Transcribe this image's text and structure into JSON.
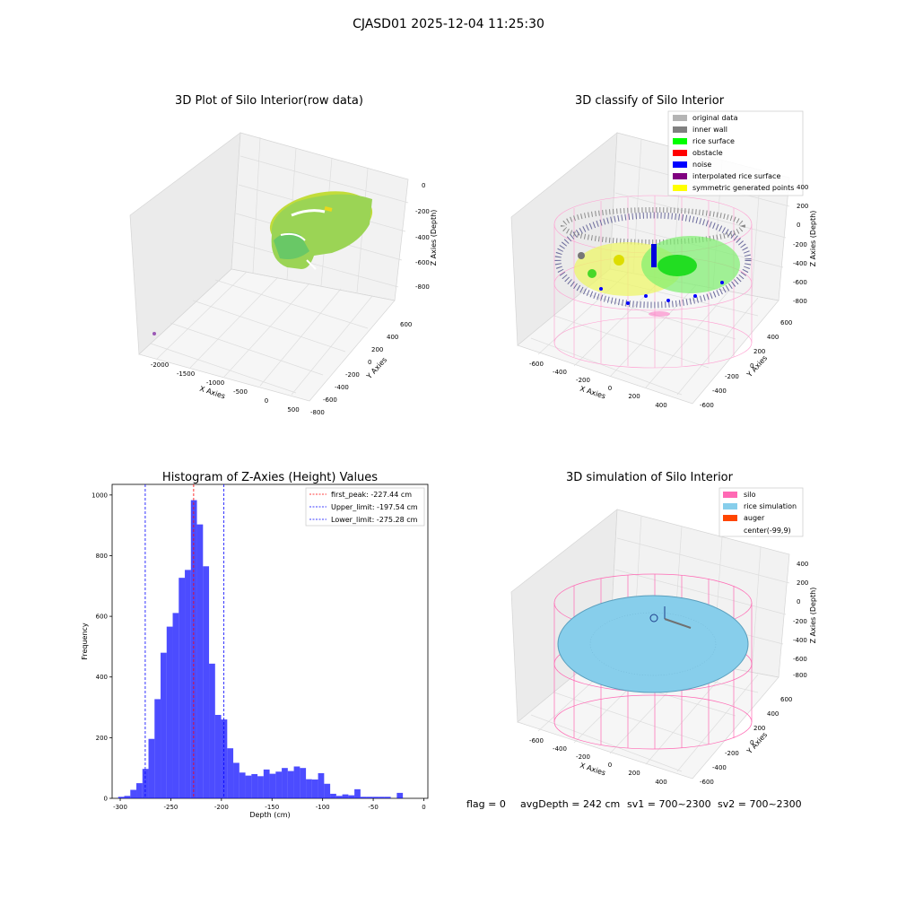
{
  "figure": {
    "suptitle": "CJASD01 2025-12-04 11:25:30",
    "status": {
      "flag": "flag = 0",
      "avg": "avgDepth = 242 cm",
      "sv1": "sv1 = 700~2300",
      "sv2": "sv2 = 700~2300"
    }
  },
  "panels": {
    "raw": {
      "title": "3D Plot of Silo Interior(row data)",
      "xlabel": "X Axies",
      "ylabel": "Y Axies",
      "zlabel": "Z Axies (Depth)",
      "xticks": [
        "-2000",
        "-1500",
        "-1000",
        "-500",
        "0",
        "500"
      ],
      "yticks": [
        "600",
        "400",
        "200",
        "0",
        "-200",
        "-400",
        "-600",
        "-800"
      ],
      "zticks": [
        "0",
        "-200",
        "-400",
        "-600",
        "-800"
      ]
    },
    "classify": {
      "title": "3D classify of Silo Interior",
      "xlabel": "X Axies",
      "ylabel": "Y Axies",
      "zlabel": "Z Axies (Depth)",
      "xticks": [
        "-600",
        "-400",
        "-200",
        "0",
        "200",
        "400"
      ],
      "yticks": [
        "600",
        "400",
        "200",
        "0",
        "-200",
        "-400",
        "-600"
      ],
      "zticks": [
        "400",
        "200",
        "0",
        "-200",
        "-400",
        "-600",
        "-800"
      ],
      "legend": [
        {
          "label": "original data",
          "color": "#b4b4b4"
        },
        {
          "label": "inner wall",
          "color": "#808080"
        },
        {
          "label": "rice surface",
          "color": "#00ff00"
        },
        {
          "label": "obstacle",
          "color": "#ff0000"
        },
        {
          "label": "noise",
          "color": "#0000ff"
        },
        {
          "label": "interpolated rice surface",
          "color": "#800080"
        },
        {
          "label": "symmetric generated points",
          "color": "#ffff00"
        }
      ]
    },
    "simulation": {
      "title": "3D simulation of Silo Interior",
      "xlabel": "X Axies",
      "ylabel": "Y Axies",
      "zlabel": "Z Axies (Depth)",
      "xticks": [
        "-600",
        "-400",
        "-200",
        "0",
        "200",
        "400"
      ],
      "yticks": [
        "600",
        "400",
        "200",
        "0",
        "-200",
        "-400",
        "-600"
      ],
      "zticks": [
        "400",
        "200",
        "0",
        "-200",
        "-400",
        "-600",
        "-800"
      ],
      "legend": [
        {
          "label": "silo",
          "color": "#ff69b4"
        },
        {
          "label": "rice simulation",
          "color": "#87ceeb"
        },
        {
          "label": "auger",
          "color": "#ff4500"
        },
        {
          "label": "center(-99,9)",
          "color": "none"
        }
      ]
    }
  },
  "chart_data": {
    "type": "bar",
    "title": "Histogram of Z-Axies (Height) Values",
    "xlabel": "Depth (cm)",
    "ylabel": "Frequency",
    "xlim": [
      -308,
      4
    ],
    "ylim": [
      0,
      1035
    ],
    "xticks": [
      -300,
      -250,
      -200,
      -150,
      -100,
      -50,
      0
    ],
    "yticks": [
      0,
      200,
      400,
      600,
      800,
      1000
    ],
    "bar_color": "#0000ff",
    "bin_start": -302,
    "bin_width": 5.985,
    "counts": [
      5,
      8,
      28,
      50,
      97,
      196,
      327,
      480,
      566,
      611,
      727,
      753,
      983,
      903,
      765,
      444,
      275,
      260,
      165,
      117,
      85,
      75,
      80,
      73,
      95,
      81,
      88,
      100,
      90,
      105,
      100,
      63,
      62,
      83,
      48,
      15,
      8,
      13,
      10,
      30,
      5,
      5,
      5,
      5,
      5,
      0,
      18
    ],
    "lines": [
      {
        "label": "first_peak: -227.44 cm",
        "x": -227.44,
        "color": "#ff0000"
      },
      {
        "label": "Upper_limit: -197.54 cm",
        "x": -197.54,
        "color": "#0000ff"
      },
      {
        "label": "Lower_limit: -275.28 cm",
        "x": -275.28,
        "color": "#0000ff"
      }
    ]
  }
}
